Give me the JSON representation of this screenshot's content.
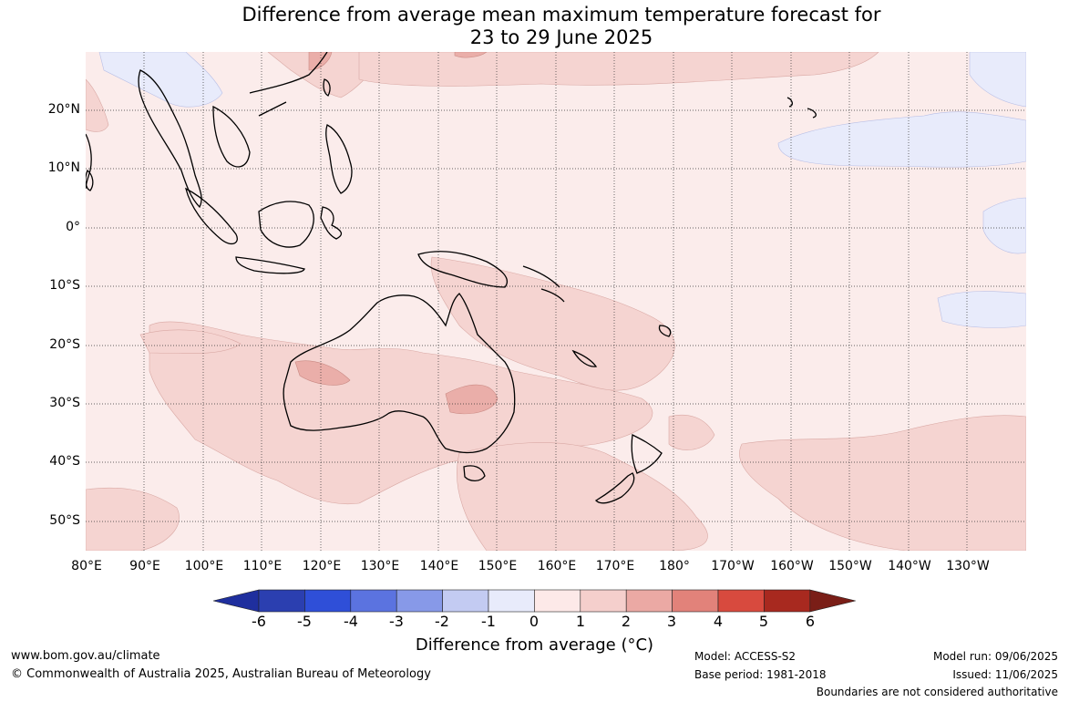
{
  "title_line1": "Difference from average mean maximum temperature forecast for",
  "title_line2": "23 to 29 June 2025",
  "lat_labels": [
    "20°N",
    "10°N",
    "0°",
    "10°S",
    "20°S",
    "30°S",
    "40°S",
    "50°S"
  ],
  "lon_labels": [
    "80°E",
    "90°E",
    "100°E",
    "110°E",
    "120°E",
    "130°E",
    "140°E",
    "150°E",
    "160°E",
    "170°E",
    "180°",
    "170°W",
    "160°W",
    "150°W",
    "140°W",
    "130°W"
  ],
  "colorbar": {
    "ticks": [
      "-6",
      "-5",
      "-4",
      "-3",
      "-2",
      "-1",
      "0",
      "1",
      "2",
      "3",
      "4",
      "5",
      "6"
    ],
    "colors": [
      "#1f2f9e",
      "#2b3fb0",
      "#2f4fd8",
      "#5b73e0",
      "#8799e8",
      "#c3cbf2",
      "#e8ebfb",
      "#fde9e8",
      "#f5cfcc",
      "#eba9a4",
      "#e2827a",
      "#d84a3e",
      "#a8291f",
      "#7a1e17"
    ],
    "label": "Difference from average (°C)"
  },
  "map": {
    "background_color": "#fbeceb",
    "categories_shown": [
      "-1 to 0",
      "0 to 1",
      "1 to 2",
      "2 to 3"
    ]
  },
  "footer": {
    "website": "www.bom.gov.au/climate",
    "copyright": "© Commonwealth of Australia 2025, Australian Bureau of Meteorology",
    "model": "Model: ACCESS-S2",
    "base_period": "Base period: 1981-2018",
    "model_run": "Model run: 09/06/2025",
    "issued": "Issued: 11/06/2025",
    "boundaries_note": "Boundaries are not considered authoritative"
  }
}
